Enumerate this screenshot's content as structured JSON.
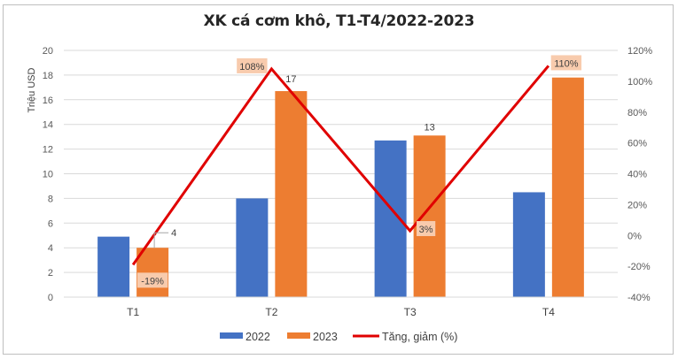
{
  "chart_data": {
    "type": "bar",
    "title": "XK cá cơm khô, T1-T4/2022-2023",
    "ylabel": "Triệu USD",
    "y2label": "",
    "xlabel": "",
    "categories": [
      "T1",
      "T2",
      "T3",
      "T4"
    ],
    "ylim": [
      0,
      20
    ],
    "yticks": [
      0,
      2,
      4,
      6,
      8,
      10,
      12,
      14,
      16,
      18,
      20
    ],
    "y2lim": [
      -40,
      120
    ],
    "y2ticks": [
      -40,
      -20,
      0,
      20,
      40,
      60,
      80,
      100,
      120
    ],
    "y2tick_labels": [
      "-40%",
      "-20%",
      "0%",
      "20%",
      "40%",
      "60%",
      "80%",
      "100%",
      "120%"
    ],
    "grid": true,
    "legend_position": "bottom",
    "series": [
      {
        "name": "2022",
        "type": "bar",
        "axis": "left",
        "color": "#4472c4",
        "values": [
          4.9,
          8.0,
          12.7,
          8.5
        ],
        "data_labels": [
          null,
          null,
          null,
          null
        ]
      },
      {
        "name": "2023",
        "type": "bar",
        "axis": "left",
        "color": "#ed7d31",
        "values": [
          4.0,
          16.7,
          13.1,
          17.8
        ],
        "data_labels": [
          "4",
          "17",
          "13",
          null
        ]
      },
      {
        "name": "Tăng, giảm (%)",
        "type": "line",
        "axis": "right",
        "color": "#e00000",
        "values": [
          -19,
          108,
          3,
          110
        ],
        "data_labels": [
          "-19%",
          "108%",
          "3%",
          "110%"
        ]
      }
    ]
  }
}
